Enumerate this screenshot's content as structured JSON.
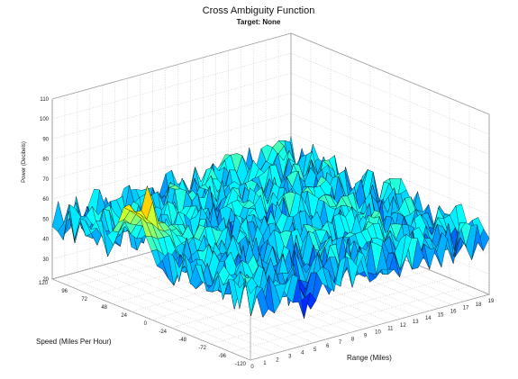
{
  "chart_data": {
    "type": "surface",
    "title": "Cross Ambiguity Function",
    "subtitle": "Target: None",
    "xlabel": "Range (Miles)",
    "ylabel": "Speed (Miles Per Hour)",
    "zlabel": "Power (Decibels)",
    "x_ticks": [
      "0",
      "1",
      "2",
      "3",
      "4",
      "5",
      "6",
      "7",
      "8",
      "9",
      "10",
      "11",
      "12",
      "13",
      "14",
      "15",
      "16",
      "17",
      "18",
      "19"
    ],
    "y_ticks": [
      "120",
      "96",
      "72",
      "48",
      "24",
      "0",
      "-24",
      "-48",
      "-72",
      "-96",
      "-120"
    ],
    "z_ticks": [
      "20",
      "30",
      "40",
      "50",
      "60",
      "70",
      "80",
      "90",
      "100",
      "110"
    ],
    "xlim": [
      0,
      19
    ],
    "ylim": [
      -120,
      120
    ],
    "zlim": [
      20,
      110
    ],
    "grid": true,
    "colormap": "jet",
    "noise_floor_db": [
      40,
      60
    ],
    "peak": {
      "range_miles": 1.5,
      "speed_mph": 24,
      "power_db": 88
    },
    "ridge": {
      "range_miles": [
        0,
        5
      ],
      "speed_mph": 24,
      "power_db": 70
    }
  }
}
